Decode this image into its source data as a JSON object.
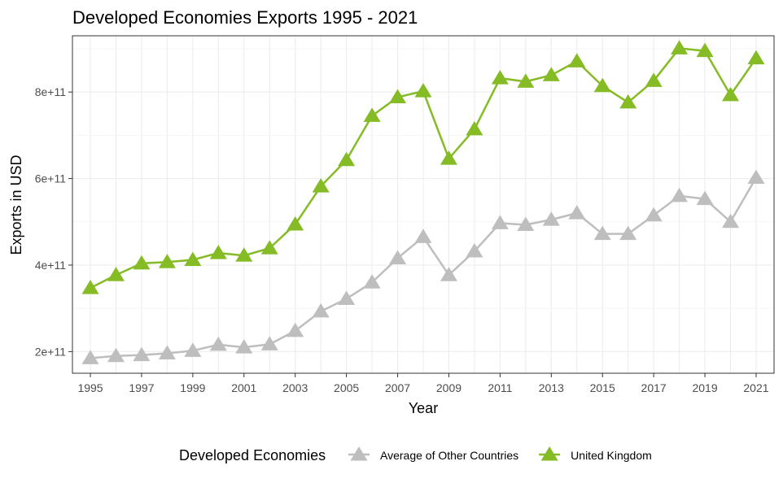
{
  "chart_data": {
    "type": "line",
    "title": "Developed Economies Exports 1995 - 2021",
    "xlabel": "Year",
    "ylabel": "Exports in USD",
    "x": [
      1995,
      1996,
      1997,
      1998,
      1999,
      2000,
      2001,
      2002,
      2003,
      2004,
      2005,
      2006,
      2007,
      2008,
      2009,
      2010,
      2011,
      2012,
      2013,
      2014,
      2015,
      2016,
      2017,
      2018,
      2019,
      2020,
      2021
    ],
    "xlim": [
      1994.3,
      2021.7
    ],
    "ylim": [
      150000000000.0,
      930000000000.0
    ],
    "x_ticks": [
      "1995",
      "1997",
      "1999",
      "2001",
      "2003",
      "2005",
      "2007",
      "2009",
      "2011",
      "2013",
      "2015",
      "2017",
      "2019",
      "2021"
    ],
    "y_ticks": [
      {
        "value": 200000000000.0,
        "label": "2e+11"
      },
      {
        "value": 400000000000.0,
        "label": "4e+11"
      },
      {
        "value": 600000000000.0,
        "label": "6e+11"
      },
      {
        "value": 800000000000.0,
        "label": "8e+11"
      }
    ],
    "grid": true,
    "legend": {
      "title": "Developed Economies",
      "position": "bottom"
    },
    "series": [
      {
        "name": "Average of Other Countries",
        "color": "#bebebe",
        "marker": "triangle",
        "values": [
          185000000000.0,
          190000000000.0,
          192000000000.0,
          196000000000.0,
          202000000000.0,
          216000000000.0,
          210000000000.0,
          217000000000.0,
          248000000000.0,
          293000000000.0,
          322000000000.0,
          360000000000.0,
          416000000000.0,
          465000000000.0,
          377000000000.0,
          432000000000.0,
          497000000000.0,
          493000000000.0,
          505000000000.0,
          520000000000.0,
          472000000000.0,
          472000000000.0,
          515000000000.0,
          560000000000.0,
          553000000000.0,
          500000000000.0,
          602000000000.0
        ]
      },
      {
        "name": "United Kingdom",
        "color": "#85bb24",
        "marker": "triangle",
        "values": [
          347000000000.0,
          377000000000.0,
          404000000000.0,
          407000000000.0,
          412000000000.0,
          428000000000.0,
          422000000000.0,
          439000000000.0,
          494000000000.0,
          582000000000.0,
          643000000000.0,
          745000000000.0,
          788000000000.0,
          802000000000.0,
          646000000000.0,
          714000000000.0,
          832000000000.0,
          824000000000.0,
          839000000000.0,
          871000000000.0,
          814000000000.0,
          776000000000.0,
          826000000000.0,
          901000000000.0,
          895000000000.0,
          793000000000.0,
          878000000000.0
        ]
      }
    ]
  }
}
